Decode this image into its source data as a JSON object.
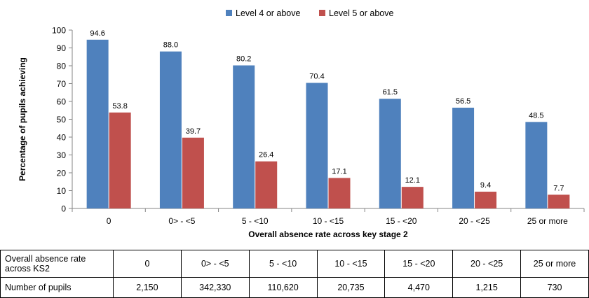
{
  "chart_data": {
    "type": "bar",
    "categories": [
      "0",
      "0> - <5",
      "5 - <10",
      "10 - <15",
      "15 - <20",
      "20 - <25",
      "25 or more"
    ],
    "series": [
      {
        "name": "Level 4 or above",
        "color": "#4f81bd",
        "values": [
          94.6,
          88.0,
          80.2,
          70.4,
          61.5,
          56.5,
          48.5
        ],
        "labels": [
          "94.6",
          "88.0",
          "80.2",
          "70.4",
          "61.5",
          "56.5",
          "48.5"
        ]
      },
      {
        "name": "Level 5 or above",
        "color": "#c0504d",
        "values": [
          53.8,
          39.7,
          26.4,
          17.1,
          12.1,
          9.4,
          7.7
        ],
        "labels": [
          "53.8",
          "39.7",
          "26.4",
          "17.1",
          "12.1",
          "9.4",
          "7.7"
        ]
      }
    ],
    "xlabel": "Overall absence rate across key stage 2",
    "ylabel": "Percentage of pupils achieving",
    "ylim": [
      0,
      100
    ],
    "yticks": [
      0,
      10,
      20,
      30,
      40,
      50,
      60,
      70,
      80,
      90,
      100
    ],
    "legend_position": "top-center",
    "grid": false
  },
  "table": {
    "rows": [
      {
        "header": "Overall absence rate across KS2",
        "cells": [
          "0",
          "0> - <5",
          "5 - <10",
          "10 - <15",
          "15 - <20",
          "20 - <25",
          "25 or more"
        ]
      },
      {
        "header": "Number of pupils",
        "cells": [
          "2,150",
          "342,330",
          "110,620",
          "20,735",
          "4,470",
          "1,215",
          "730"
        ]
      }
    ]
  }
}
